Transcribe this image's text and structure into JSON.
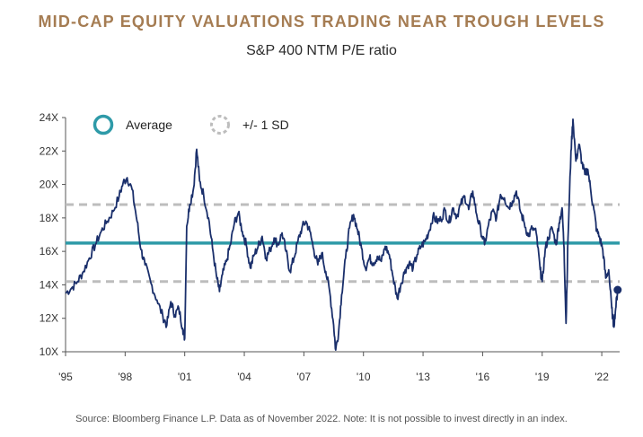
{
  "chart_data": {
    "type": "line",
    "title": "MID-CAP EQUITY VALUATIONS TRADING NEAR TROUGH LEVELS",
    "subtitle": "S&P 400 NTM P/E ratio",
    "footnote": "Source: Bloomberg Finance L.P. Data as of November 2022. Note: It is not possible to invest directly in an index.",
    "xlabel": "",
    "ylabel": "",
    "xlim": [
      1995,
      2022.9
    ],
    "ylim": [
      10,
      24
    ],
    "x_ticks": [
      {
        "value": 1995,
        "label": "'95"
      },
      {
        "value": 1998,
        "label": "'98"
      },
      {
        "value": 2001,
        "label": "'01"
      },
      {
        "value": 2004,
        "label": "'04"
      },
      {
        "value": 2007,
        "label": "'07"
      },
      {
        "value": 2010,
        "label": "'10"
      },
      {
        "value": 2013,
        "label": "'13"
      },
      {
        "value": 2016,
        "label": "'16"
      },
      {
        "value": 2019,
        "label": "'19"
      },
      {
        "value": 2022,
        "label": "'22"
      }
    ],
    "y_ticks": [
      {
        "value": 10,
        "label": "10X"
      },
      {
        "value": 12,
        "label": "12X"
      },
      {
        "value": 14,
        "label": "14X"
      },
      {
        "value": 16,
        "label": "16X"
      },
      {
        "value": 18,
        "label": "18X"
      },
      {
        "value": 20,
        "label": "20X"
      },
      {
        "value": 22,
        "label": "22X"
      },
      {
        "value": 24,
        "label": "24X"
      }
    ],
    "grid": false,
    "legend_position": "top-left",
    "legend": [
      {
        "label": "Average",
        "symbol": "circle-solid",
        "color": "#2e9aa8"
      },
      {
        "label": "+/- 1 SD",
        "symbol": "circle-dashed",
        "color": "#bdbdbd"
      }
    ],
    "average": 16.5,
    "sd_upper": 18.8,
    "sd_lower": 14.2,
    "series": [
      {
        "color": "#1a2f6b",
        "points": [
          [
            1995.0,
            13.5
          ],
          [
            1995.3,
            13.8
          ],
          [
            1995.6,
            14.2
          ],
          [
            1995.9,
            14.8
          ],
          [
            1996.2,
            15.6
          ],
          [
            1996.5,
            16.4
          ],
          [
            1996.8,
            17.2
          ],
          [
            1997.1,
            17.8
          ],
          [
            1997.4,
            18.4
          ],
          [
            1997.7,
            19.3
          ],
          [
            1997.9,
            20.1
          ],
          [
            1998.1,
            20.4
          ],
          [
            1998.35,
            19.7
          ],
          [
            1998.6,
            17.8
          ],
          [
            1998.8,
            16.1
          ],
          [
            1999.0,
            15.2
          ],
          [
            1999.3,
            14.1
          ],
          [
            1999.6,
            13.1
          ],
          [
            1999.9,
            12.1
          ],
          [
            2000.1,
            11.6
          ],
          [
            2000.3,
            13.0
          ],
          [
            2000.5,
            12.2
          ],
          [
            2000.7,
            12.6
          ],
          [
            2000.9,
            11.4
          ],
          [
            2001.0,
            10.8
          ],
          [
            2001.1,
            17.5
          ],
          [
            2001.25,
            18.8
          ],
          [
            2001.45,
            19.8
          ],
          [
            2001.6,
            22.1
          ],
          [
            2001.75,
            20.2
          ],
          [
            2001.95,
            19.4
          ],
          [
            2002.2,
            18.0
          ],
          [
            2002.4,
            16.2
          ],
          [
            2002.6,
            14.5
          ],
          [
            2002.75,
            13.6
          ],
          [
            2002.9,
            14.6
          ],
          [
            2003.1,
            15.4
          ],
          [
            2003.3,
            16.4
          ],
          [
            2003.5,
            17.7
          ],
          [
            2003.7,
            18.3
          ],
          [
            2003.9,
            17.2
          ],
          [
            2004.1,
            16.4
          ],
          [
            2004.3,
            15.0
          ],
          [
            2004.5,
            15.8
          ],
          [
            2004.7,
            16.3
          ],
          [
            2004.9,
            16.9
          ],
          [
            2005.1,
            15.6
          ],
          [
            2005.3,
            16.1
          ],
          [
            2005.5,
            16.8
          ],
          [
            2005.7,
            16.4
          ],
          [
            2005.9,
            17.1
          ],
          [
            2006.1,
            16.0
          ],
          [
            2006.3,
            14.8
          ],
          [
            2006.5,
            15.6
          ],
          [
            2006.7,
            16.6
          ],
          [
            2006.9,
            17.4
          ],
          [
            2007.1,
            17.8
          ],
          [
            2007.3,
            17.2
          ],
          [
            2007.5,
            16.1
          ],
          [
            2007.7,
            15.2
          ],
          [
            2007.9,
            15.9
          ],
          [
            2008.1,
            14.8
          ],
          [
            2008.3,
            13.6
          ],
          [
            2008.5,
            11.6
          ],
          [
            2008.6,
            10.1
          ],
          [
            2008.75,
            11.2
          ],
          [
            2008.9,
            13.4
          ],
          [
            2009.1,
            15.6
          ],
          [
            2009.3,
            17.4
          ],
          [
            2009.5,
            18.2
          ],
          [
            2009.7,
            17.3
          ],
          [
            2009.9,
            16.2
          ],
          [
            2010.1,
            15.0
          ],
          [
            2010.3,
            15.6
          ],
          [
            2010.5,
            15.3
          ],
          [
            2010.7,
            15.7
          ],
          [
            2010.9,
            15.4
          ],
          [
            2011.1,
            16.3
          ],
          [
            2011.3,
            15.8
          ],
          [
            2011.5,
            14.4
          ],
          [
            2011.7,
            13.2
          ],
          [
            2011.9,
            14.1
          ],
          [
            2012.1,
            14.9
          ],
          [
            2012.3,
            15.3
          ],
          [
            2012.5,
            15.0
          ],
          [
            2012.7,
            15.8
          ],
          [
            2012.9,
            16.3
          ],
          [
            2013.1,
            16.6
          ],
          [
            2013.3,
            17.2
          ],
          [
            2013.5,
            18.1
          ],
          [
            2013.7,
            17.8
          ],
          [
            2013.9,
            17.9
          ],
          [
            2014.1,
            18.5
          ],
          [
            2014.3,
            17.7
          ],
          [
            2014.5,
            18.6
          ],
          [
            2014.7,
            18.1
          ],
          [
            2014.9,
            18.8
          ],
          [
            2015.1,
            19.3
          ],
          [
            2015.3,
            18.5
          ],
          [
            2015.5,
            19.6
          ],
          [
            2015.7,
            18.2
          ],
          [
            2015.9,
            17.3
          ],
          [
            2016.1,
            16.4
          ],
          [
            2016.3,
            17.6
          ],
          [
            2016.5,
            18.4
          ],
          [
            2016.7,
            18.0
          ],
          [
            2016.9,
            19.4
          ],
          [
            2017.1,
            19.2
          ],
          [
            2017.3,
            18.6
          ],
          [
            2017.5,
            19.0
          ],
          [
            2017.7,
            19.6
          ],
          [
            2017.9,
            18.4
          ],
          [
            2018.1,
            17.7
          ],
          [
            2018.3,
            16.9
          ],
          [
            2018.5,
            17.4
          ],
          [
            2018.7,
            17.1
          ],
          [
            2018.9,
            14.9
          ],
          [
            2019.0,
            14.2
          ],
          [
            2019.15,
            16.1
          ],
          [
            2019.3,
            16.8
          ],
          [
            2019.5,
            17.4
          ],
          [
            2019.7,
            16.4
          ],
          [
            2019.85,
            17.7
          ],
          [
            2020.0,
            18.6
          ],
          [
            2020.1,
            16.2
          ],
          [
            2020.2,
            11.7
          ],
          [
            2020.3,
            16.8
          ],
          [
            2020.45,
            22.0
          ],
          [
            2020.55,
            23.9
          ],
          [
            2020.7,
            21.4
          ],
          [
            2020.85,
            22.4
          ],
          [
            2021.0,
            21.3
          ],
          [
            2021.15,
            20.6
          ],
          [
            2021.3,
            20.9
          ],
          [
            2021.45,
            19.6
          ],
          [
            2021.6,
            18.5
          ],
          [
            2021.75,
            17.2
          ],
          [
            2021.9,
            16.8
          ],
          [
            2022.05,
            16.1
          ],
          [
            2022.2,
            14.4
          ],
          [
            2022.35,
            14.9
          ],
          [
            2022.5,
            12.6
          ],
          [
            2022.6,
            11.5
          ],
          [
            2022.7,
            12.6
          ],
          [
            2022.8,
            13.7
          ]
        ]
      }
    ],
    "last_point": [
      2022.8,
      13.7
    ]
  }
}
